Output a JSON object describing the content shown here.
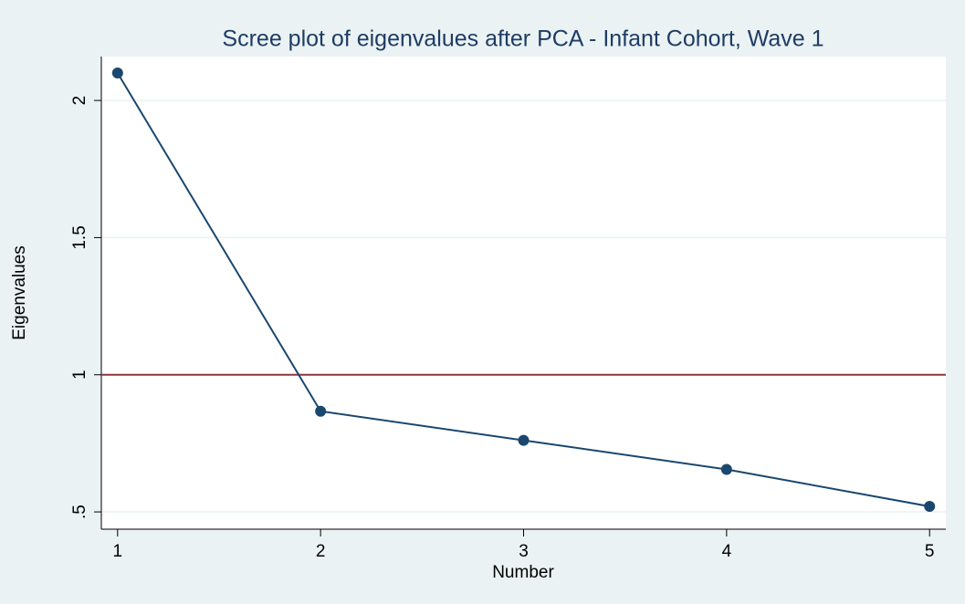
{
  "chart_data": {
    "type": "line",
    "title": "Scree plot of eigenvalues after PCA - Infant Cohort, Wave 1",
    "x_label": "Number",
    "y_label": "Eigenvalues",
    "x": [
      1,
      2,
      3,
      4,
      5
    ],
    "values": [
      2.1,
      0.867,
      0.761,
      0.655,
      0.52
    ],
    "color": "#1a476f",
    "xlim": [
      0.92,
      5.08
    ],
    "xticks": [
      1,
      2,
      3,
      4,
      5
    ],
    "ylim": [
      0.437,
      2.16
    ],
    "yticks": [
      {
        "value": 0.5,
        "label": ".5"
      },
      1,
      1.5,
      2
    ],
    "grid": true,
    "reference_line": {
      "value": 1,
      "color": "#90353b"
    }
  }
}
